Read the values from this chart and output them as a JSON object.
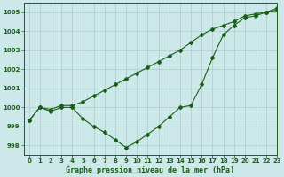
{
  "background_color": "#cce8e8",
  "grid_color": "#aacccc",
  "line_color": "#1a5e1a",
  "title": "Graphe pression niveau de la mer (hPa)",
  "xlim": [
    -0.5,
    23
  ],
  "ylim": [
    997.5,
    1005.5
  ],
  "yticks": [
    998,
    999,
    1000,
    1001,
    1002,
    1003,
    1004,
    1005
  ],
  "xticks": [
    0,
    1,
    2,
    3,
    4,
    5,
    6,
    7,
    8,
    9,
    10,
    11,
    12,
    13,
    14,
    15,
    16,
    17,
    18,
    19,
    20,
    21,
    22,
    23
  ],
  "series1_x": [
    0,
    1,
    2,
    3,
    4,
    5,
    6,
    7,
    8,
    9,
    10,
    11,
    12,
    13,
    14,
    15,
    16,
    17,
    18,
    19,
    20,
    21,
    22,
    23
  ],
  "series1_y": [
    999.3,
    1000.0,
    999.9,
    1000.1,
    1000.1,
    1000.3,
    1000.6,
    1000.9,
    1001.2,
    1001.5,
    1001.8,
    1002.1,
    1002.4,
    1002.7,
    1003.0,
    1003.4,
    1003.8,
    1004.1,
    1004.3,
    1004.5,
    1004.8,
    1004.9,
    1005.0,
    1005.2
  ],
  "series2_x": [
    0,
    1,
    2,
    3,
    4,
    5,
    6,
    7,
    8,
    9,
    10,
    11,
    12,
    13,
    14,
    15,
    16,
    17,
    18,
    19,
    20,
    21,
    22,
    23
  ],
  "series2_y": [
    999.3,
    1000.0,
    999.8,
    1000.0,
    1000.0,
    999.4,
    999.0,
    998.7,
    998.3,
    997.9,
    998.2,
    998.6,
    999.0,
    999.5,
    1000.0,
    1000.1,
    1001.2,
    1002.6,
    1003.8,
    1004.3,
    1004.7,
    1004.8,
    1005.0,
    1005.1
  ],
  "title_fontsize": 6,
  "tick_fontsize": 5
}
